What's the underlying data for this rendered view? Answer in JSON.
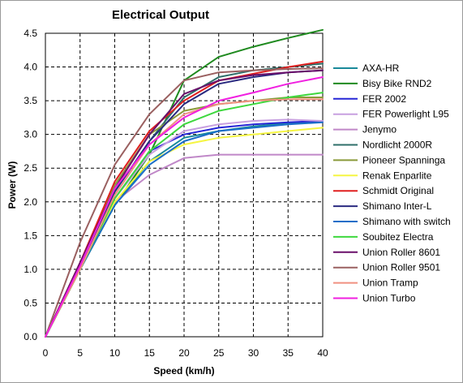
{
  "chart_data": {
    "type": "line",
    "title": "Electrical Output",
    "xlabel": "Speed (km/h)",
    "ylabel": "Power (W)",
    "xlim": [
      0,
      40
    ],
    "ylim": [
      0,
      4.5
    ],
    "grid": true,
    "legend_position": "right",
    "x_ticks": [
      "0",
      "5",
      "10",
      "15",
      "20",
      "25",
      "30",
      "35",
      "40"
    ],
    "y_ticks": [
      "0.0",
      "0.5",
      "1.0",
      "1.5",
      "2.0",
      "2.5",
      "3.0",
      "3.5",
      "4.0",
      "4.5"
    ],
    "x": [
      0,
      5,
      10,
      15,
      20,
      25,
      30,
      35,
      40
    ],
    "series": [
      {
        "name": "AXA-HR",
        "color": "#1a8a9a",
        "values": [
          0,
          1.0,
          1.95,
          2.6,
          2.95,
          3.05,
          3.12,
          3.17,
          3.2
        ]
      },
      {
        "name": "Bisy Bike RND2",
        "color": "#1f8a1f",
        "values": [
          0,
          1.0,
          1.95,
          2.7,
          3.8,
          4.15,
          4.3,
          4.43,
          4.55
        ]
      },
      {
        "name": "FER 2002",
        "color": "#2626d6",
        "values": [
          0,
          1.05,
          2.05,
          2.75,
          3.0,
          3.1,
          3.15,
          3.18,
          3.2
        ]
      },
      {
        "name": "FER Powerlight L95",
        "color": "#c8a0e0",
        "values": [
          0,
          1.0,
          2.05,
          2.7,
          3.05,
          3.15,
          3.2,
          3.22,
          3.2
        ]
      },
      {
        "name": "Jenymo",
        "color": "#c088c8",
        "values": [
          0,
          1.05,
          2.0,
          2.4,
          2.65,
          2.7,
          2.7,
          2.7,
          2.7
        ]
      },
      {
        "name": "Nordlicht 2000R",
        "color": "#2f6f6a",
        "values": [
          0,
          1.05,
          2.15,
          2.9,
          3.55,
          3.85,
          3.95,
          4.0,
          4.05
        ]
      },
      {
        "name": "Pioneer Spanninga",
        "color": "#8a9a3a",
        "values": [
          0,
          1.05,
          2.25,
          3.0,
          3.35,
          3.45,
          3.5,
          3.55,
          3.55
        ]
      },
      {
        "name": "Renak Enparlite",
        "color": "#f5f542",
        "values": [
          0,
          1.0,
          2.0,
          2.6,
          2.85,
          2.95,
          3.0,
          3.05,
          3.1
        ]
      },
      {
        "name": "Schmidt Original",
        "color": "#e02020",
        "values": [
          0,
          1.1,
          2.3,
          3.05,
          3.5,
          3.8,
          3.9,
          4.0,
          4.08
        ]
      },
      {
        "name": "Shimano Inter-L",
        "color": "#2a2a80",
        "values": [
          0,
          1.05,
          2.15,
          2.9,
          3.45,
          3.75,
          3.85,
          3.92,
          3.95
        ]
      },
      {
        "name": "Shimano with switch",
        "color": "#1a6ec8",
        "values": [
          0,
          1.0,
          1.95,
          2.55,
          2.9,
          3.05,
          3.1,
          3.15,
          3.18
        ]
      },
      {
        "name": "Soubitez Electra",
        "color": "#3ed83e",
        "values": [
          0,
          1.0,
          2.05,
          2.75,
          3.15,
          3.35,
          3.45,
          3.55,
          3.62
        ]
      },
      {
        "name": "Union Roller 8601",
        "color": "#6a0f6a",
        "values": [
          0,
          1.1,
          2.2,
          3.0,
          3.6,
          3.8,
          3.88,
          3.92,
          3.95
        ]
      },
      {
        "name": "Union Roller 9501",
        "color": "#9a6060",
        "values": [
          0,
          1.4,
          2.55,
          3.3,
          3.8,
          3.92,
          3.95,
          3.97,
          3.98
        ]
      },
      {
        "name": "Union Tramp",
        "color": "#f09080",
        "values": [
          0,
          1.0,
          2.1,
          2.85,
          3.3,
          3.45,
          3.5,
          3.52,
          3.52
        ]
      },
      {
        "name": "Union Turbo",
        "color": "#f020e0",
        "values": [
          0,
          1.05,
          2.2,
          2.85,
          3.25,
          3.5,
          3.62,
          3.75,
          3.85
        ]
      }
    ]
  }
}
